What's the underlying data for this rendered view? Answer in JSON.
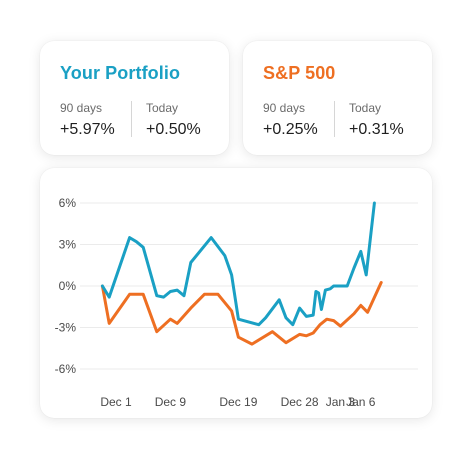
{
  "cards": [
    {
      "title": "Your Portfolio",
      "color": "#1aa0c4",
      "stats": [
        {
          "label": "90 days",
          "value": "+5.97%"
        },
        {
          "label": "Today",
          "value": "+0.50%"
        }
      ]
    },
    {
      "title": "S&P 500",
      "color": "#ee6f22",
      "stats": [
        {
          "label": "90 days",
          "value": "+0.25%"
        },
        {
          "label": "Today",
          "value": "+0.31%"
        }
      ]
    }
  ],
  "chart_data": {
    "type": "line",
    "title": "",
    "xlabel": "",
    "ylabel": "",
    "ylim": [
      -6,
      6
    ],
    "y_ticks": [
      "6%",
      "3%",
      "0%",
      "-3%",
      "-6%"
    ],
    "y_tick_values": [
      6,
      3,
      0,
      -3,
      -6
    ],
    "x_ticks": [
      "Dec 1",
      "Dec 9",
      "Dec 19",
      "Dec 28",
      "Jan 3",
      "Jan 6"
    ],
    "x_tick_positions": [
      0,
      8,
      18,
      27,
      33,
      36
    ],
    "grid": true,
    "series": [
      {
        "color": "#1aa0c4",
        "points": [
          [
            -2,
            0
          ],
          [
            -1,
            -0.8
          ],
          [
            2,
            3.5
          ],
          [
            3,
            3.2
          ],
          [
            4,
            2.8
          ],
          [
            6,
            -0.7
          ],
          [
            7,
            -0.8
          ],
          [
            8,
            -0.4
          ],
          [
            9,
            -0.3
          ],
          [
            10,
            -0.7
          ],
          [
            11,
            1.7
          ],
          [
            14,
            3.5
          ],
          [
            16,
            2.2
          ],
          [
            17,
            0.8
          ],
          [
            18,
            -2.4
          ],
          [
            21,
            -2.8
          ],
          [
            22,
            -2.3
          ],
          [
            24,
            -1.0
          ],
          [
            25,
            -2.3
          ],
          [
            26,
            -2.8
          ],
          [
            27,
            -1.6
          ],
          [
            28,
            -2.2
          ],
          [
            29,
            -2.1
          ],
          [
            29.4,
            -0.4
          ],
          [
            29.8,
            -0.5
          ],
          [
            30.2,
            -1.7
          ],
          [
            30.8,
            -0.3
          ],
          [
            31.5,
            -0.2
          ],
          [
            32,
            0
          ],
          [
            33,
            0
          ],
          [
            34,
            0
          ],
          [
            35,
            1.3
          ],
          [
            36,
            2.5
          ],
          [
            36.8,
            0.8
          ],
          [
            38,
            6.0
          ]
        ]
      },
      {
        "color": "#ee6f22",
        "points": [
          [
            -2,
            0
          ],
          [
            -1,
            -2.7
          ],
          [
            2,
            -0.6
          ],
          [
            4,
            -0.6
          ],
          [
            6,
            -3.3
          ],
          [
            8,
            -2.4
          ],
          [
            9,
            -2.7
          ],
          [
            11,
            -1.6
          ],
          [
            13,
            -0.6
          ],
          [
            15,
            -0.6
          ],
          [
            17,
            -1.8
          ],
          [
            18,
            -3.7
          ],
          [
            20,
            -4.2
          ],
          [
            23,
            -3.3
          ],
          [
            25,
            -4.1
          ],
          [
            27,
            -3.5
          ],
          [
            28,
            -3.6
          ],
          [
            29,
            -3.4
          ],
          [
            30,
            -2.8
          ],
          [
            31,
            -2.4
          ],
          [
            32,
            -2.5
          ],
          [
            33,
            -2.9
          ],
          [
            35,
            -2.0
          ],
          [
            36,
            -1.4
          ],
          [
            37,
            -1.9
          ],
          [
            39,
            0.25
          ]
        ]
      }
    ]
  }
}
